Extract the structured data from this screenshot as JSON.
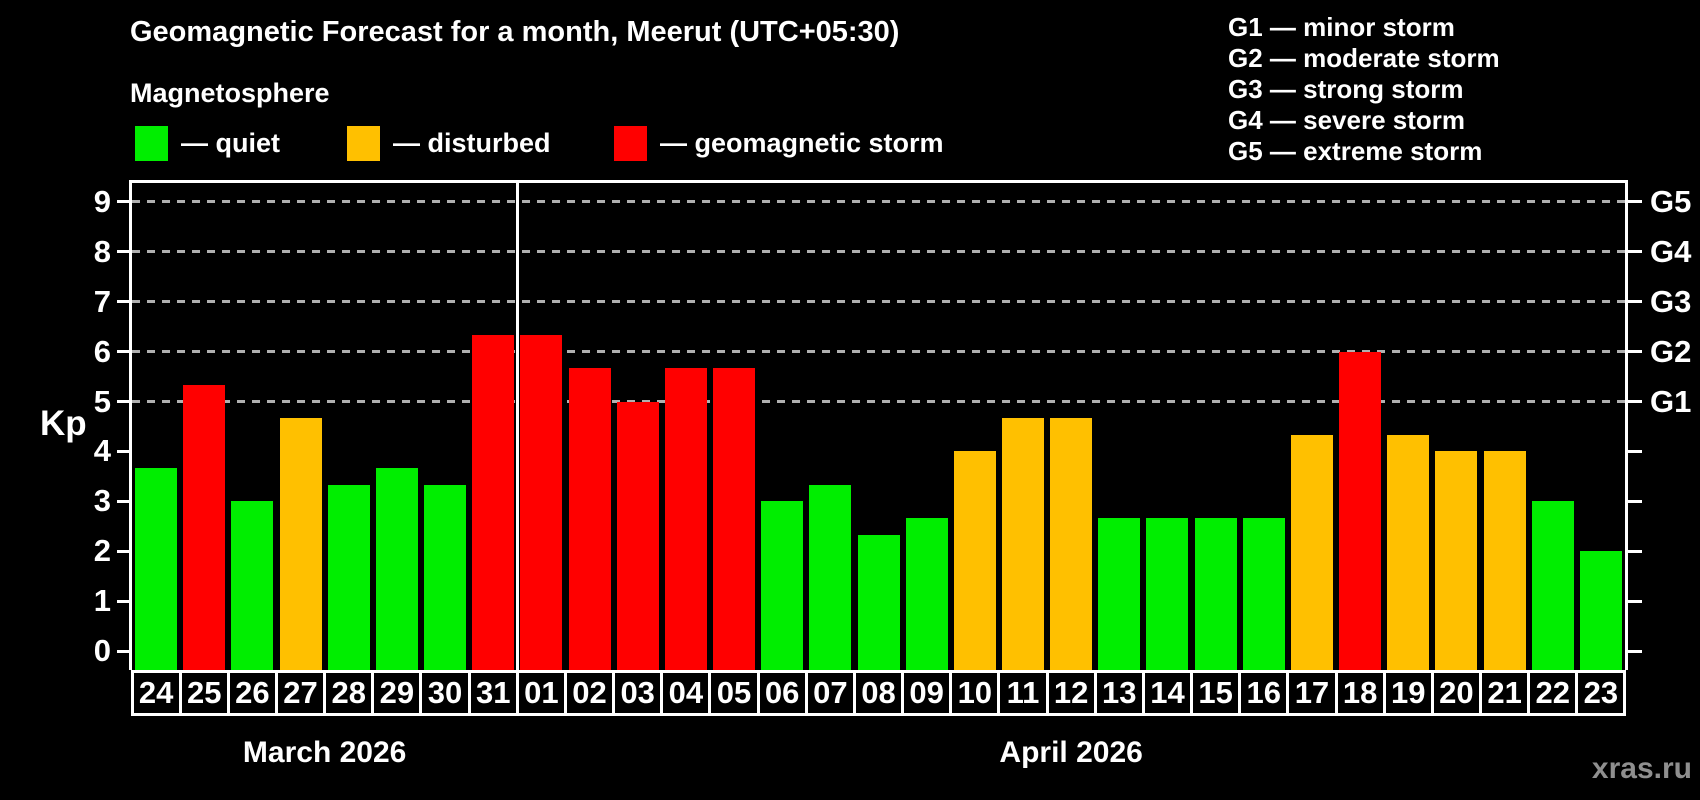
{
  "title": "Geomagnetic Forecast for a month, Meerut (UTC+05:30)",
  "subtitle": "Magnetosphere",
  "watermark": "xras.ru",
  "colors": {
    "quiet": "#00ee00",
    "disturbed": "#ffc000",
    "storm": "#ff0000",
    "grid": "#b0b0b0",
    "axis": "#ffffff",
    "watermark": "#8f8f8f"
  },
  "legend": [
    {
      "status": "quiet",
      "label": "— quiet"
    },
    {
      "status": "disturbed",
      "label": "— disturbed"
    },
    {
      "status": "storm",
      "label": "— geomagnetic storm"
    }
  ],
  "g_scale_legend": [
    "G1 — minor storm",
    "G2 — moderate storm",
    "G3 — strong storm",
    "G4 — severe storm",
    "G5 — extreme storm"
  ],
  "y_axis": {
    "label": "Kp",
    "ticks": [
      0,
      1,
      2,
      3,
      4,
      5,
      6,
      7,
      8,
      9
    ]
  },
  "right_axis": {
    "labels": [
      {
        "value": 5,
        "text": "G1"
      },
      {
        "value": 6,
        "text": "G2"
      },
      {
        "value": 7,
        "text": "G3"
      },
      {
        "value": 8,
        "text": "G4"
      },
      {
        "value": 9,
        "text": "G5"
      }
    ]
  },
  "chart_data": {
    "type": "bar",
    "title": "Geomagnetic Forecast for a month, Meerut (UTC+05:30)",
    "xlabel": "",
    "ylabel": "Kp",
    "ylim": [
      0,
      9.4
    ],
    "grid": "dashed horizontal at G-storm levels",
    "gridlines_at": [
      5,
      6,
      7,
      8,
      9
    ],
    "legend_position": "top-left",
    "months": [
      {
        "label": "March 2026",
        "days": [
          "24",
          "25",
          "26",
          "27",
          "28",
          "29",
          "30",
          "31"
        ],
        "values": [
          3.67,
          5.33,
          3.0,
          4.67,
          3.33,
          3.67,
          3.33,
          6.33
        ],
        "status": [
          "quiet",
          "storm",
          "quiet",
          "disturbed",
          "quiet",
          "quiet",
          "quiet",
          "storm"
        ]
      },
      {
        "label": "April 2026",
        "days": [
          "01",
          "02",
          "03",
          "04",
          "05",
          "06",
          "07",
          "08",
          "09",
          "10",
          "11",
          "12",
          "13",
          "14",
          "15",
          "16",
          "17",
          "18",
          "19",
          "20",
          "21",
          "22",
          "23"
        ],
        "values": [
          6.33,
          5.67,
          5.0,
          5.67,
          5.67,
          3.0,
          3.33,
          2.33,
          2.67,
          4.0,
          4.67,
          4.67,
          2.67,
          2.67,
          2.67,
          2.67,
          4.33,
          6.0,
          4.33,
          4.0,
          4.0,
          3.0,
          2.0
        ],
        "status": [
          "storm",
          "storm",
          "storm",
          "storm",
          "storm",
          "quiet",
          "quiet",
          "quiet",
          "quiet",
          "disturbed",
          "disturbed",
          "disturbed",
          "quiet",
          "quiet",
          "quiet",
          "quiet",
          "disturbed",
          "storm",
          "disturbed",
          "disturbed",
          "disturbed",
          "quiet",
          "quiet"
        ]
      }
    ]
  }
}
